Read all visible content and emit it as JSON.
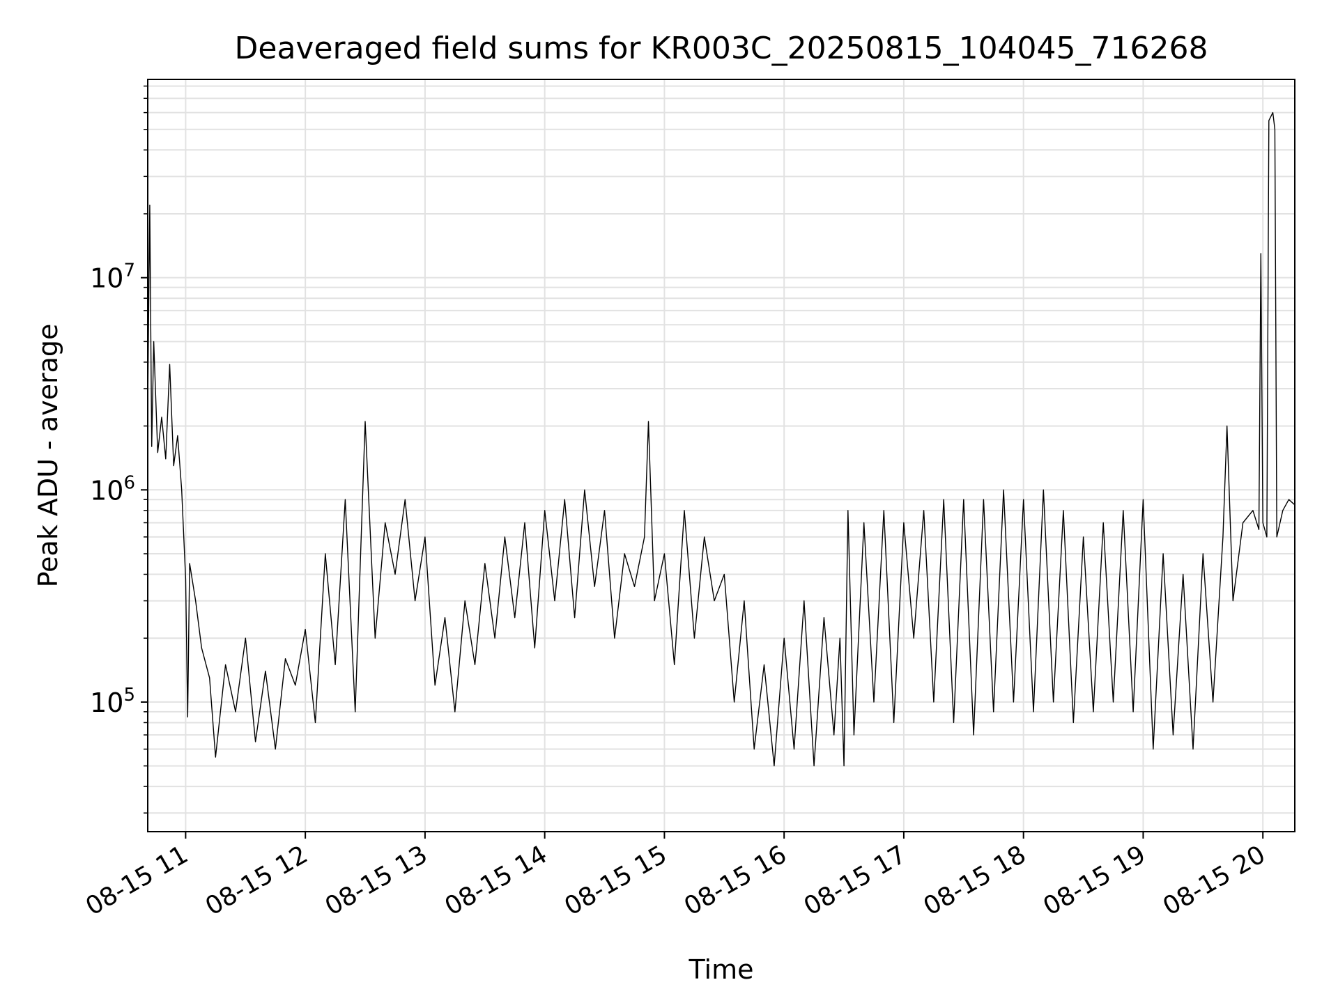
{
  "chart_data": {
    "type": "line",
    "title": "Deaveraged field sums for KR003C_20250815_104045_716268",
    "xlabel": "Time",
    "ylabel": "Peak ADU - average",
    "xlim": [
      "2025-08-15 10:41",
      "2025-08-15 20:16"
    ],
    "ylim": [
      24500,
      86000000
    ],
    "yscale": "log",
    "grid": true,
    "x_ticks": [
      {
        "t": "2025-08-15 11:00",
        "label": "08-15 11"
      },
      {
        "t": "2025-08-15 12:00",
        "label": "08-15 12"
      },
      {
        "t": "2025-08-15 13:00",
        "label": "08-15 13"
      },
      {
        "t": "2025-08-15 14:00",
        "label": "08-15 14"
      },
      {
        "t": "2025-08-15 15:00",
        "label": "08-15 15"
      },
      {
        "t": "2025-08-15 16:00",
        "label": "08-15 16"
      },
      {
        "t": "2025-08-15 17:00",
        "label": "08-15 17"
      },
      {
        "t": "2025-08-15 18:00",
        "label": "08-15 18"
      },
      {
        "t": "2025-08-15 19:00",
        "label": "08-15 19"
      },
      {
        "t": "2025-08-15 20:00",
        "label": "08-15 20"
      }
    ],
    "y_ticks": [
      {
        "v": 100000,
        "base": "10",
        "exp": "5"
      },
      {
        "v": 1000000,
        "base": "10",
        "exp": "6"
      },
      {
        "v": 10000000,
        "base": "10",
        "exp": "7"
      }
    ],
    "series": [
      {
        "color": "#000000",
        "points": [
          [
            "2025-08-15 10:41",
            2500000
          ],
          [
            "2025-08-15 10:42",
            22000000
          ],
          [
            "2025-08-15 10:43",
            1600000
          ],
          [
            "2025-08-15 10:44",
            5000000
          ],
          [
            "2025-08-15 10:46",
            1500000
          ],
          [
            "2025-08-15 10:48",
            2200000
          ],
          [
            "2025-08-15 10:50",
            1400000
          ],
          [
            "2025-08-15 10:52",
            3900000
          ],
          [
            "2025-08-15 10:54",
            1300000
          ],
          [
            "2025-08-15 10:56",
            1800000
          ],
          [
            "2025-08-15 10:58",
            1000000
          ],
          [
            "2025-08-15 11:00",
            380000
          ],
          [
            "2025-08-15 11:01",
            85000
          ],
          [
            "2025-08-15 11:02",
            450000
          ],
          [
            "2025-08-15 11:05",
            300000
          ],
          [
            "2025-08-15 11:08",
            180000
          ],
          [
            "2025-08-15 11:12",
            130000
          ],
          [
            "2025-08-15 11:15",
            55000
          ],
          [
            "2025-08-15 11:20",
            150000
          ],
          [
            "2025-08-15 11:25",
            90000
          ],
          [
            "2025-08-15 11:30",
            200000
          ],
          [
            "2025-08-15 11:35",
            65000
          ],
          [
            "2025-08-15 11:40",
            140000
          ],
          [
            "2025-08-15 11:45",
            60000
          ],
          [
            "2025-08-15 11:50",
            160000
          ],
          [
            "2025-08-15 11:55",
            120000
          ],
          [
            "2025-08-15 12:00",
            220000
          ],
          [
            "2025-08-15 12:05",
            80000
          ],
          [
            "2025-08-15 12:10",
            500000
          ],
          [
            "2025-08-15 12:15",
            150000
          ],
          [
            "2025-08-15 12:20",
            900000
          ],
          [
            "2025-08-15 12:25",
            90000
          ],
          [
            "2025-08-15 12:30",
            2100000
          ],
          [
            "2025-08-15 12:35",
            200000
          ],
          [
            "2025-08-15 12:40",
            700000
          ],
          [
            "2025-08-15 12:45",
            400000
          ],
          [
            "2025-08-15 12:50",
            900000
          ],
          [
            "2025-08-15 12:55",
            300000
          ],
          [
            "2025-08-15 13:00",
            600000
          ],
          [
            "2025-08-15 13:05",
            120000
          ],
          [
            "2025-08-15 13:10",
            250000
          ],
          [
            "2025-08-15 13:15",
            90000
          ],
          [
            "2025-08-15 13:20",
            300000
          ],
          [
            "2025-08-15 13:25",
            150000
          ],
          [
            "2025-08-15 13:30",
            450000
          ],
          [
            "2025-08-15 13:35",
            200000
          ],
          [
            "2025-08-15 13:40",
            600000
          ],
          [
            "2025-08-15 13:45",
            250000
          ],
          [
            "2025-08-15 13:50",
            700000
          ],
          [
            "2025-08-15 13:55",
            180000
          ],
          [
            "2025-08-15 14:00",
            800000
          ],
          [
            "2025-08-15 14:05",
            300000
          ],
          [
            "2025-08-15 14:10",
            900000
          ],
          [
            "2025-08-15 14:15",
            250000
          ],
          [
            "2025-08-15 14:20",
            1000000
          ],
          [
            "2025-08-15 14:25",
            350000
          ],
          [
            "2025-08-15 14:30",
            800000
          ],
          [
            "2025-08-15 14:35",
            200000
          ],
          [
            "2025-08-15 14:40",
            500000
          ],
          [
            "2025-08-15 14:45",
            350000
          ],
          [
            "2025-08-15 14:50",
            600000
          ],
          [
            "2025-08-15 14:52",
            2100000
          ],
          [
            "2025-08-15 14:55",
            300000
          ],
          [
            "2025-08-15 15:00",
            500000
          ],
          [
            "2025-08-15 15:05",
            150000
          ],
          [
            "2025-08-15 15:10",
            800000
          ],
          [
            "2025-08-15 15:15",
            200000
          ],
          [
            "2025-08-15 15:20",
            600000
          ],
          [
            "2025-08-15 15:25",
            300000
          ],
          [
            "2025-08-15 15:30",
            400000
          ],
          [
            "2025-08-15 15:35",
            100000
          ],
          [
            "2025-08-15 15:40",
            300000
          ],
          [
            "2025-08-15 15:45",
            60000
          ],
          [
            "2025-08-15 15:50",
            150000
          ],
          [
            "2025-08-15 15:55",
            50000
          ],
          [
            "2025-08-15 16:00",
            200000
          ],
          [
            "2025-08-15 16:05",
            60000
          ],
          [
            "2025-08-15 16:10",
            300000
          ],
          [
            "2025-08-15 16:15",
            50000
          ],
          [
            "2025-08-15 16:20",
            250000
          ],
          [
            "2025-08-15 16:25",
            70000
          ],
          [
            "2025-08-15 16:28",
            200000
          ],
          [
            "2025-08-15 16:30",
            50000
          ],
          [
            "2025-08-15 16:32",
            800000
          ],
          [
            "2025-08-15 16:35",
            70000
          ],
          [
            "2025-08-15 16:40",
            700000
          ],
          [
            "2025-08-15 16:45",
            100000
          ],
          [
            "2025-08-15 16:50",
            800000
          ],
          [
            "2025-08-15 16:55",
            80000
          ],
          [
            "2025-08-15 17:00",
            700000
          ],
          [
            "2025-08-15 17:05",
            200000
          ],
          [
            "2025-08-15 17:10",
            800000
          ],
          [
            "2025-08-15 17:15",
            100000
          ],
          [
            "2025-08-15 17:20",
            900000
          ],
          [
            "2025-08-15 17:25",
            80000
          ],
          [
            "2025-08-15 17:30",
            900000
          ],
          [
            "2025-08-15 17:35",
            70000
          ],
          [
            "2025-08-15 17:40",
            900000
          ],
          [
            "2025-08-15 17:45",
            90000
          ],
          [
            "2025-08-15 17:50",
            1000000
          ],
          [
            "2025-08-15 17:55",
            100000
          ],
          [
            "2025-08-15 18:00",
            900000
          ],
          [
            "2025-08-15 18:05",
            90000
          ],
          [
            "2025-08-15 18:10",
            1000000
          ],
          [
            "2025-08-15 18:15",
            100000
          ],
          [
            "2025-08-15 18:20",
            800000
          ],
          [
            "2025-08-15 18:25",
            80000
          ],
          [
            "2025-08-15 18:30",
            600000
          ],
          [
            "2025-08-15 18:35",
            90000
          ],
          [
            "2025-08-15 18:40",
            700000
          ],
          [
            "2025-08-15 18:45",
            100000
          ],
          [
            "2025-08-15 18:50",
            800000
          ],
          [
            "2025-08-15 18:55",
            90000
          ],
          [
            "2025-08-15 19:00",
            900000
          ],
          [
            "2025-08-15 19:05",
            60000
          ],
          [
            "2025-08-15 19:10",
            500000
          ],
          [
            "2025-08-15 19:15",
            70000
          ],
          [
            "2025-08-15 19:20",
            400000
          ],
          [
            "2025-08-15 19:25",
            60000
          ],
          [
            "2025-08-15 19:30",
            500000
          ],
          [
            "2025-08-15 19:35",
            100000
          ],
          [
            "2025-08-15 19:40",
            600000
          ],
          [
            "2025-08-15 19:42",
            2000000
          ],
          [
            "2025-08-15 19:45",
            300000
          ],
          [
            "2025-08-15 19:50",
            700000
          ],
          [
            "2025-08-15 19:55",
            800000
          ],
          [
            "2025-08-15 19:58",
            650000
          ],
          [
            "2025-08-15 19:59",
            13000000
          ],
          [
            "2025-08-15 20:00",
            700000
          ],
          [
            "2025-08-15 20:02",
            600000
          ],
          [
            "2025-08-15 20:03",
            55000000
          ],
          [
            "2025-08-15 20:05",
            60000000
          ],
          [
            "2025-08-15 20:06",
            50000000
          ],
          [
            "2025-08-15 20:07",
            600000
          ],
          [
            "2025-08-15 20:10",
            800000
          ],
          [
            "2025-08-15 20:13",
            900000
          ],
          [
            "2025-08-15 20:16",
            850000
          ]
        ]
      }
    ]
  }
}
